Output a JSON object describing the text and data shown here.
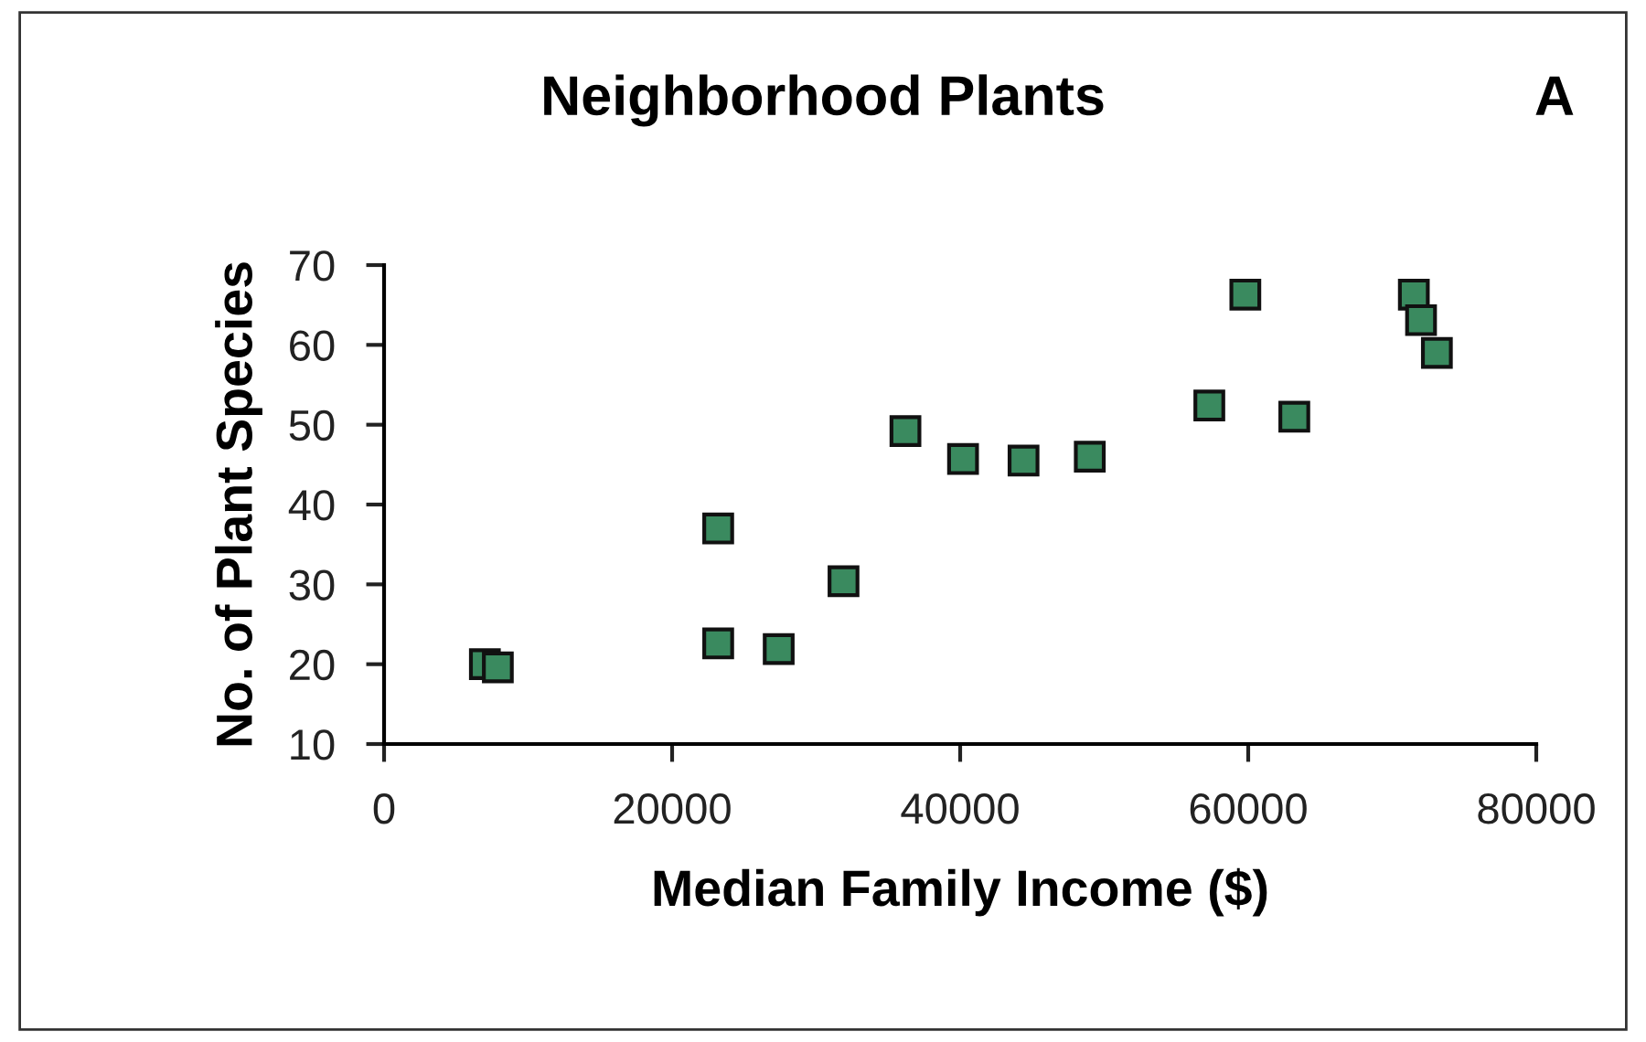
{
  "chart_data": {
    "type": "scatter",
    "title": "Neighborhood Plants",
    "xlabel": "Median Family Income ($)",
    "ylabel": "No. of Plant Species",
    "annotations": [
      "A"
    ],
    "x": [
      7000,
      7900,
      23200,
      23200,
      27400,
      31900,
      36200,
      40200,
      44400,
      49000,
      57300,
      59800,
      63200,
      71500,
      72000,
      73100
    ],
    "series": [
      {
        "color": "#3a8a5f",
        "values": [
          20,
          19.6,
          37,
          22.6,
          21.9,
          30.4,
          49.2,
          45.7,
          45.5,
          46,
          52.4,
          66.3,
          51,
          66.3,
          63.1,
          59
        ]
      }
    ],
    "xlim": [
      0,
      80000
    ],
    "xticks": [
      0,
      20000,
      40000,
      60000,
      80000
    ],
    "ylim": [
      10,
      70
    ],
    "yticks": [
      10,
      20,
      30,
      40,
      50,
      60,
      70
    ],
    "marker": "square",
    "grid": false,
    "legend": false
  }
}
